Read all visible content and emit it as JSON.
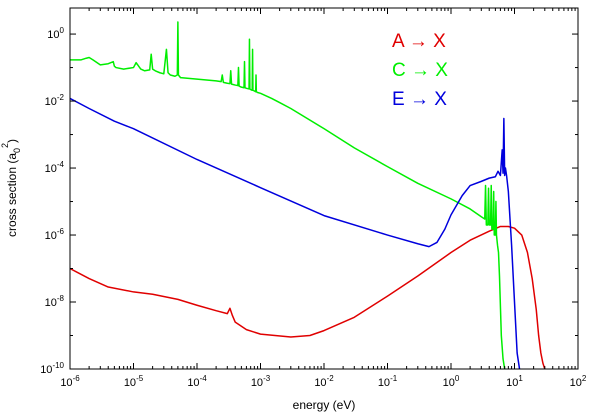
{
  "chart_data": {
    "type": "line",
    "title": "",
    "xlabel": "energy (eV)",
    "ylabel_text": "cross section (a",
    "ylabel_sub": "0",
    "ylabel_sup": "2",
    "ylabel_close": ")",
    "xscale": "log",
    "yscale": "log",
    "xlim": [
      1e-06,
      100
    ],
    "ylim": [
      1e-10,
      6
    ],
    "grid": false,
    "legend_position": "top-right",
    "x_ticks": [
      {
        "value": 1e-06,
        "base": "10",
        "exp": "-6"
      },
      {
        "value": 1e-05,
        "base": "10",
        "exp": "-5"
      },
      {
        "value": 0.0001,
        "base": "10",
        "exp": "-4"
      },
      {
        "value": 0.001,
        "base": "10",
        "exp": "-3"
      },
      {
        "value": 0.01,
        "base": "10",
        "exp": "-2"
      },
      {
        "value": 0.1,
        "base": "10",
        "exp": "-1"
      },
      {
        "value": 1,
        "base": "10",
        "exp": "0"
      },
      {
        "value": 10,
        "base": "10",
        "exp": "1"
      },
      {
        "value": 100,
        "base": "10",
        "exp": "2"
      }
    ],
    "y_ticks": [
      {
        "value": 1,
        "base": "10",
        "exp": "0"
      },
      {
        "value": 0.01,
        "base": "10",
        "exp": "-2"
      },
      {
        "value": 0.0001,
        "base": "10",
        "exp": "-4"
      },
      {
        "value": 1e-06,
        "base": "10",
        "exp": "-6"
      },
      {
        "value": 1e-08,
        "base": "10",
        "exp": "-8"
      },
      {
        "value": 1e-10,
        "base": "10",
        "exp": "-10"
      }
    ],
    "series": [
      {
        "name": "A → X",
        "color": "#e00000",
        "x": [
          1e-06,
          2e-06,
          4e-06,
          1e-05,
          2e-05,
          5e-05,
          0.0001,
          0.0002,
          0.0003,
          0.00033,
          0.00036,
          0.0004,
          0.0006,
          0.001,
          0.003,
          0.006,
          0.01,
          0.03,
          0.1,
          0.3,
          1,
          2,
          4,
          6,
          8,
          10,
          13,
          16,
          19,
          22,
          24,
          26,
          28,
          30
        ],
        "y": [
          1e-07,
          5e-08,
          2.8e-08,
          2e-08,
          1.7e-08,
          1.2e-08,
          8e-09,
          5.5e-09,
          4.5e-09,
          6.5e-09,
          4e-09,
          2.5e-09,
          1.5e-09,
          1.1e-09,
          9e-10,
          1e-09,
          1.4e-09,
          3.5e-09,
          1.5e-08,
          6e-08,
          3e-07,
          7e-07,
          1.3e-06,
          1.8e-06,
          1.8e-06,
          1.6e-06,
          1e-06,
          3e-07,
          5e-08,
          6e-09,
          1e-09,
          3e-10,
          1.5e-10,
          1e-10
        ]
      },
      {
        "name": "C → X",
        "color": "#00ee00",
        "x": [
          1e-06,
          1.5e-06,
          1.8e-06,
          2e-06,
          2.3e-06,
          3e-06,
          4e-06,
          4.8e-06,
          5e-06,
          5.3e-06,
          7e-06,
          1e-05,
          1.1e-05,
          1.3e-05,
          1.5e-05,
          1.8e-05,
          1.9e-05,
          2e-05,
          2.2e-05,
          2.6e-05,
          3e-05,
          3.3e-05,
          3.5e-05,
          3.8e-05,
          4.5e-05,
          4.9e-05,
          5e-05,
          5.1e-05,
          5.5e-05,
          0.0001,
          0.0002,
          0.00024,
          0.00025,
          0.00026,
          0.0003,
          0.00033,
          0.00034,
          0.00035,
          0.0004,
          0.00044,
          0.00045,
          0.00046,
          0.0005,
          0.00055,
          0.00056,
          0.00057,
          0.0006,
          0.00066,
          0.00067,
          0.00068,
          0.0007,
          0.00074,
          0.00075,
          0.00076,
          0.0008,
          0.00084,
          0.00085,
          0.00086,
          0.0009,
          0.001,
          0.0015,
          0.002,
          0.003,
          0.01,
          0.03,
          0.1,
          0.3,
          1,
          2,
          3,
          3.4,
          3.5,
          3.6,
          3.8,
          3.9,
          4.0,
          4.2,
          4.3,
          4.4,
          4.6,
          4.7,
          4.8,
          5.0,
          5.1,
          5.2,
          5.4,
          5.6,
          5.8,
          6.2,
          6.6,
          7
        ],
        "y": [
          0.17,
          0.17,
          0.19,
          0.2,
          0.17,
          0.12,
          0.13,
          0.15,
          0.11,
          0.1,
          0.09,
          0.1,
          0.14,
          0.09,
          0.08,
          0.085,
          0.25,
          0.09,
          0.08,
          0.07,
          0.065,
          0.35,
          0.07,
          0.06,
          0.055,
          0.06,
          2.3,
          0.06,
          0.05,
          0.045,
          0.04,
          0.038,
          0.06,
          0.036,
          0.034,
          0.033,
          0.08,
          0.032,
          0.03,
          0.029,
          0.1,
          0.028,
          0.026,
          0.025,
          0.15,
          0.025,
          0.024,
          0.023,
          0.7,
          0.023,
          0.022,
          0.021,
          0.35,
          0.021,
          0.02,
          0.019,
          0.06,
          0.019,
          0.018,
          0.017,
          0.012,
          0.009,
          0.006,
          0.0015,
          0.0004,
          0.00011,
          3.5e-05,
          1.2e-05,
          6e-06,
          3.5e-06,
          3e-06,
          3e-05,
          2e-06,
          2e-06,
          2.5e-05,
          2e-06,
          2e-06,
          3e-05,
          1.5e-06,
          1.5e-06,
          2e-05,
          1e-06,
          1e-06,
          1e-05,
          1e-06,
          5e-07,
          3e-07,
          6e-08,
          1e-09,
          2e-10,
          1e-10
        ]
      },
      {
        "name": "E → X",
        "color": "#0000dd",
        "x": [
          1e-06,
          2e-06,
          5e-06,
          1e-05,
          0.0001,
          0.001,
          0.01,
          0.1,
          0.3,
          0.45,
          0.6,
          0.8,
          1,
          1.5,
          2,
          3,
          4,
          5,
          5.5,
          6,
          6.4,
          6.6,
          6.8,
          7,
          7.2,
          7.5,
          8,
          9,
          10,
          11,
          12
        ],
        "y": [
          0.012,
          0.006,
          0.0025,
          0.0015,
          0.00018,
          2.6e-05,
          3.8e-06,
          1e-06,
          5.5e-07,
          4.5e-07,
          6e-07,
          1.5e-06,
          4e-06,
          1.5e-05,
          3e-05,
          4e-05,
          5e-05,
          5.5e-05,
          8e-05,
          6e-05,
          0.00035,
          7e-05,
          0.003,
          6e-05,
          0.0001,
          6e-05,
          2e-05,
          5e-07,
          1e-08,
          3e-10,
          1e-10
        ]
      }
    ]
  }
}
